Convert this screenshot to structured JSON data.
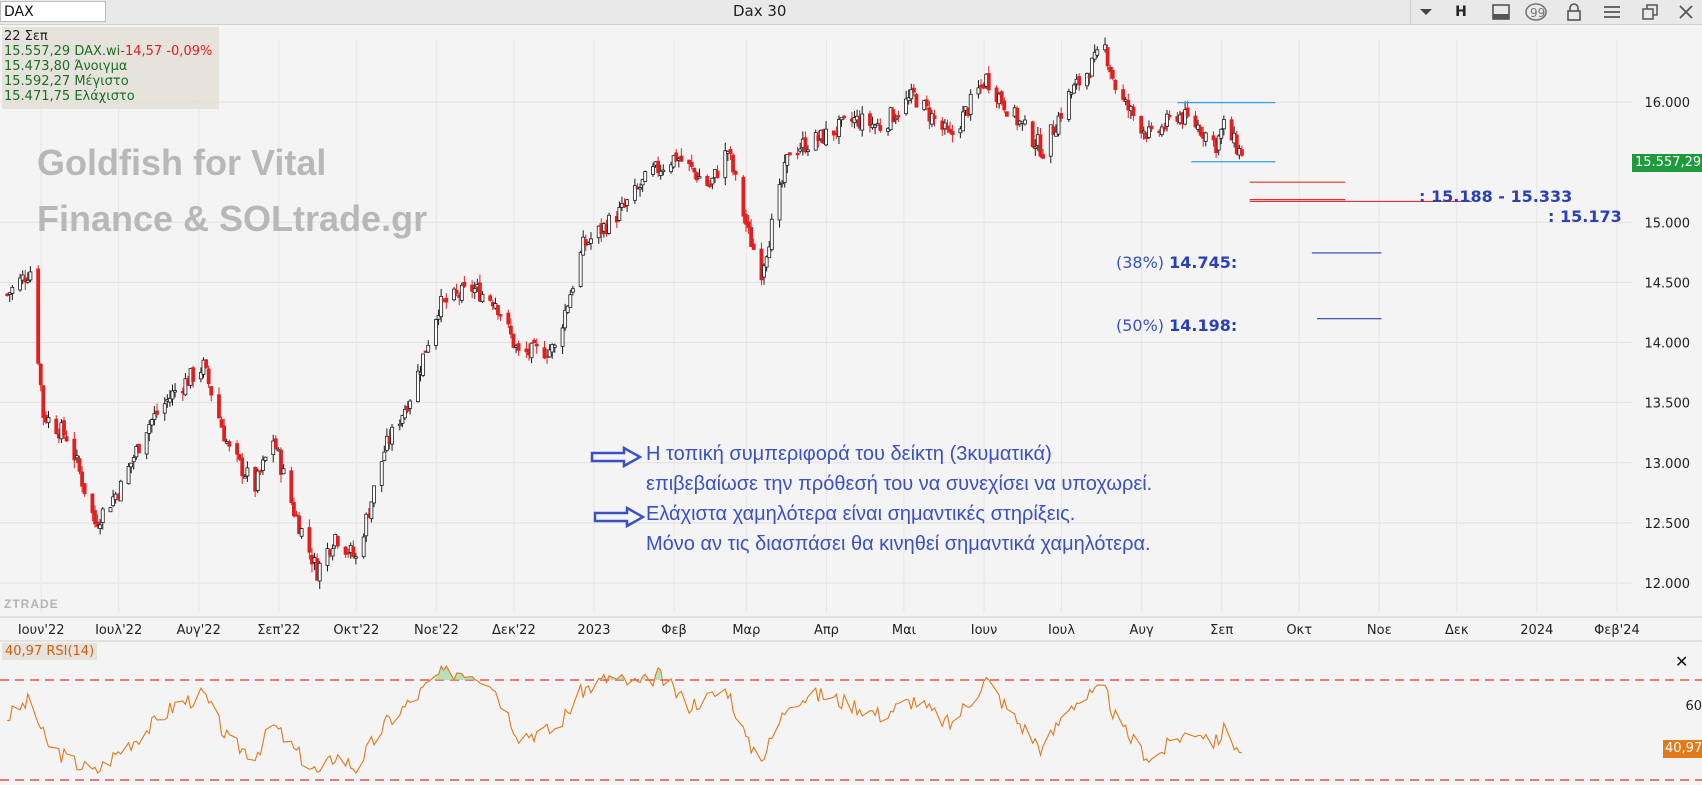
{
  "toolbar": {
    "symbol": "DAX",
    "title": "Dax 30",
    "timeframe": "H"
  },
  "info": {
    "date": "22 Σεπ",
    "last_price": "15.557,29",
    "instrument": "DAX.wi",
    "change": "-14,57",
    "change_pct": "-0,09%",
    "open_value": "15.473,80",
    "open_label": "Άνοιγμα",
    "high_value": "15.592,27",
    "high_label": "Μέγιστο",
    "low_value": "15.471,75",
    "low_label": "Ελάχιστο"
  },
  "watermark": {
    "line1": "Goldfish for Vital",
    "line2": "Finance & SOLtrade.gr",
    "brand": "ZTRADE"
  },
  "annotations": {
    "line1": "Η τοπική συμπεριφορά του δείκτη (3κυματικά)",
    "line2": "επιβεβαίωσε  την πρόθεσή του να συνεχίσει να υποχωρεί.",
    "line3": "Ελάχιστα χαμηλότερα είναι σημαντικές στηρίξεις.",
    "line4": "Μόνο αν τις διασπάσει θα κινηθεί σημαντικά χαμηλότερα.",
    "support_zone": ": 15.188 - 15.333",
    "support_single": ": 15.173",
    "fib38_pct": "(38%)",
    "fib38_value": "14.745:",
    "fib50_pct": "(50%)",
    "fib50_value": "14.198:"
  },
  "colors": {
    "up": "#1f9a3a",
    "down": "#e02020",
    "annotation_blue": "#3a50c4",
    "range_box": "#3aa0e6",
    "support": "#e03030",
    "rsi": "#e07a1c",
    "rsi_band": "#e03030",
    "rsi_overbought_fill": "#9fd9a0"
  },
  "price_badge": "15.557,29",
  "rsi_badge": "40,97",
  "chart_data": {
    "type": "candlestick",
    "symbol": "DAX",
    "title": "Dax 30",
    "x_labels": [
      "Ιουν'22",
      "Ιουλ'22",
      "Αυγ'22",
      "Σεπ'22",
      "Οκτ'22",
      "Νοε'22",
      "Δεκ'22",
      "2023",
      "Φεβ",
      "Μαρ",
      "Απρ",
      "Μαι",
      "Ιουν",
      "Ιουλ",
      "Αυγ",
      "Σεπ",
      "Οκτ",
      "Νοε",
      "Δεκ",
      "2024",
      "Φεβ'24"
    ],
    "y_ticks": [
      "12.000",
      "12.500",
      "13.000",
      "13.500",
      "14.000",
      "14.500",
      "15.000",
      "16.000"
    ],
    "y_tick_values": [
      12000,
      12500,
      13000,
      13500,
      14000,
      14500,
      15000,
      16000
    ],
    "ylim": [
      11900,
      16250
    ],
    "grid": true,
    "last_price": 15557.29,
    "path": [
      [
        "2022-06-01",
        14400
      ],
      [
        "2022-06-10",
        14600
      ],
      [
        "2022-06-15",
        13400
      ],
      [
        "2022-06-25",
        13200
      ],
      [
        "2022-07-05",
        12500
      ],
      [
        "2022-07-15",
        12800
      ],
      [
        "2022-07-25",
        13300
      ],
      [
        "2022-08-05",
        13600
      ],
      [
        "2022-08-16",
        13800
      ],
      [
        "2022-08-26",
        13100
      ],
      [
        "2022-09-05",
        12800
      ],
      [
        "2022-09-12",
        13200
      ],
      [
        "2022-09-20",
        12600
      ],
      [
        "2022-09-29",
        12100
      ],
      [
        "2022-10-06",
        12400
      ],
      [
        "2022-10-14",
        12200
      ],
      [
        "2022-10-25",
        13100
      ],
      [
        "2022-11-05",
        13600
      ],
      [
        "2022-11-15",
        14300
      ],
      [
        "2022-11-28",
        14450
      ],
      [
        "2022-12-07",
        14350
      ],
      [
        "2022-12-16",
        13900
      ],
      [
        "2022-12-30",
        13950
      ],
      [
        "2023-01-10",
        14800
      ],
      [
        "2023-01-25",
        15100
      ],
      [
        "2023-02-05",
        15400
      ],
      [
        "2023-02-15",
        15550
      ],
      [
        "2023-02-28",
        15300
      ],
      [
        "2023-03-07",
        15600
      ],
      [
        "2023-03-15",
        14900
      ],
      [
        "2023-03-20",
        14600
      ],
      [
        "2023-03-31",
        15600
      ],
      [
        "2023-04-12",
        15700
      ],
      [
        "2023-04-25",
        15850
      ],
      [
        "2023-05-05",
        15800
      ],
      [
        "2023-05-18",
        16050
      ],
      [
        "2023-06-01",
        15700
      ],
      [
        "2023-06-15",
        16200
      ],
      [
        "2023-06-25",
        15900
      ],
      [
        "2023-07-07",
        15600
      ],
      [
        "2023-07-17",
        16050
      ],
      [
        "2023-07-31",
        16450
      ],
      [
        "2023-08-05",
        16050
      ],
      [
        "2023-08-18",
        15700
      ],
      [
        "2023-08-28",
        15900
      ],
      [
        "2023-09-05",
        15800
      ],
      [
        "2023-09-12",
        15650
      ],
      [
        "2023-09-15",
        15800
      ],
      [
        "2023-09-22",
        15557
      ]
    ],
    "range_box": {
      "from": "2023-08-28",
      "to": "2023-10-05",
      "top": 15995,
      "bottom": 15503
    },
    "support_levels": [
      {
        "value": 15333,
        "label": ": 15.188 - 15.333",
        "from": "2023-09-25",
        "to": "2023-11-01"
      },
      {
        "value": 15188,
        "from": "2023-09-25",
        "to": "2023-11-01"
      },
      {
        "value": 15173,
        "label": ": 15.173",
        "from": "2023-09-25",
        "to": "2023-12-20"
      }
    ],
    "fib_levels": [
      {
        "pct": "(38%)",
        "value": 14745,
        "from": "2023-08-22",
        "to": "2023-11-15"
      },
      {
        "pct": "(50%)",
        "value": 14198,
        "from": "2023-08-24",
        "to": "2023-11-15"
      }
    ],
    "rsi": {
      "label": "40,97 RSI(14)",
      "period": 14,
      "last": 40.97,
      "levels": [
        70,
        30
      ],
      "y_ticks": [
        "60"
      ],
      "ylim": [
        28,
        78
      ],
      "path": [
        [
          "2022-06-01",
          55
        ],
        [
          "2022-06-10",
          62
        ],
        [
          "2022-06-16",
          45
        ],
        [
          "2022-06-25",
          38
        ],
        [
          "2022-07-05",
          33
        ],
        [
          "2022-07-15",
          42
        ],
        [
          "2022-07-25",
          50
        ],
        [
          "2022-08-05",
          60
        ],
        [
          "2022-08-16",
          64
        ],
        [
          "2022-08-26",
          45
        ],
        [
          "2022-09-05",
          40
        ],
        [
          "2022-09-12",
          52
        ],
        [
          "2022-09-20",
          42
        ],
        [
          "2022-09-30",
          32
        ],
        [
          "2022-10-06",
          40
        ],
        [
          "2022-10-14",
          35
        ],
        [
          "2022-10-25",
          52
        ],
        [
          "2022-11-05",
          62
        ],
        [
          "2022-11-15",
          72
        ],
        [
          "2022-11-25",
          74
        ],
        [
          "2022-12-05",
          70
        ],
        [
          "2022-12-16",
          48
        ],
        [
          "2022-12-30",
          50
        ],
        [
          "2023-01-10",
          66
        ],
        [
          "2023-01-20",
          71
        ],
        [
          "2023-02-01",
          68
        ],
        [
          "2023-02-08",
          72
        ],
        [
          "2023-02-20",
          60
        ],
        [
          "2023-03-07",
          66
        ],
        [
          "2023-03-15",
          44
        ],
        [
          "2023-03-21",
          40
        ],
        [
          "2023-03-31",
          62
        ],
        [
          "2023-04-12",
          64
        ],
        [
          "2023-04-25",
          60
        ],
        [
          "2023-05-05",
          56
        ],
        [
          "2023-05-18",
          62
        ],
        [
          "2023-06-01",
          52
        ],
        [
          "2023-06-15",
          70
        ],
        [
          "2023-06-25",
          56
        ],
        [
          "2023-07-07",
          42
        ],
        [
          "2023-07-17",
          60
        ],
        [
          "2023-07-31",
          66
        ],
        [
          "2023-08-05",
          52
        ],
        [
          "2023-08-18",
          38
        ],
        [
          "2023-08-28",
          47
        ],
        [
          "2023-09-05",
          50
        ],
        [
          "2023-09-12",
          45
        ],
        [
          "2023-09-15",
          50
        ],
        [
          "2023-09-22",
          40.97
        ]
      ]
    }
  }
}
